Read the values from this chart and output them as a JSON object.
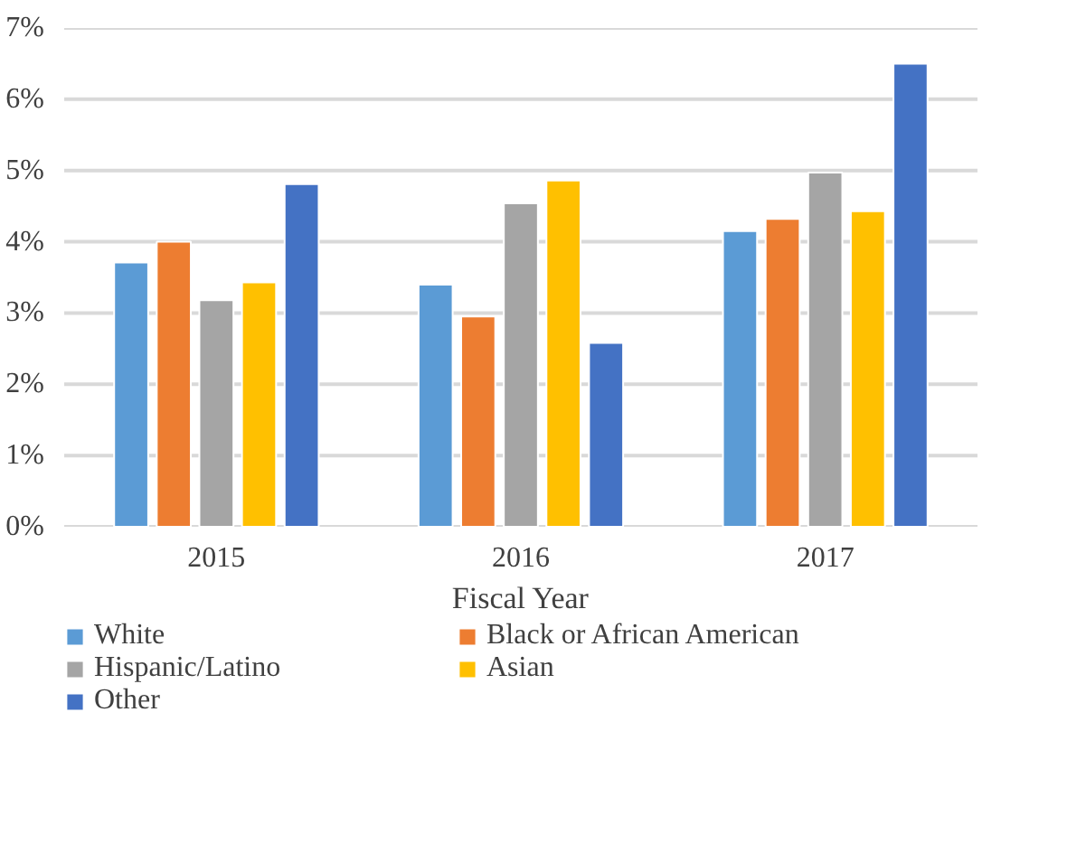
{
  "chart_data": {
    "type": "bar",
    "xlabel": "Fiscal Year",
    "categories": [
      "2015",
      "2016",
      "2017"
    ],
    "series": [
      {
        "name": "White",
        "color": "#5b9bd5",
        "values": [
          3.71,
          3.4,
          4.15
        ]
      },
      {
        "name": "Black or African American",
        "color": "#ed7d31",
        "values": [
          4.0,
          2.95,
          4.32
        ]
      },
      {
        "name": "Hispanic/Latino",
        "color": "#a5a5a5",
        "values": [
          3.18,
          4.54,
          4.97
        ]
      },
      {
        "name": "Asian",
        "color": "#ffc000",
        "values": [
          3.43,
          4.86,
          4.43
        ]
      },
      {
        "name": "Other",
        "color": "#4472c4",
        "values": [
          4.81,
          2.58,
          6.5
        ]
      }
    ],
    "ylim": [
      0,
      7
    ],
    "yticks": [
      {
        "value": 0,
        "label": "0%"
      },
      {
        "value": 1,
        "label": "1%"
      },
      {
        "value": 2,
        "label": "2%"
      },
      {
        "value": 3,
        "label": "3%"
      },
      {
        "value": 4,
        "label": "4%"
      },
      {
        "value": 5,
        "label": "5%"
      },
      {
        "value": 6,
        "label": "6%"
      },
      {
        "value": 7,
        "label": "7%"
      }
    ],
    "grid": "y",
    "legend": "bottom"
  }
}
